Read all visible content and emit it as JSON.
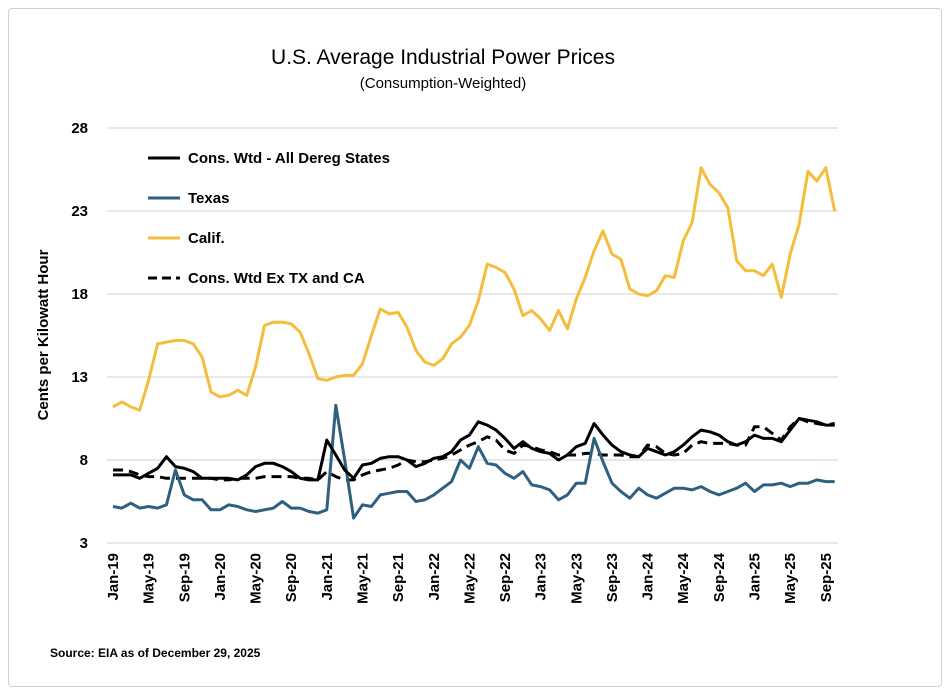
{
  "chart_data": {
    "type": "line",
    "title": "U.S. Average Industrial Power Prices",
    "subtitle": "(Consumption-Weighted)",
    "xlabel": "",
    "ylabel": "Cents per Kilowatt Hour",
    "ylim": [
      3,
      28
    ],
    "yticks": [
      3,
      8,
      13,
      18,
      23,
      28
    ],
    "x_start": "Jan-19",
    "x_end": "Oct-25",
    "xtick_labels": [
      "Jan-19",
      "May-19",
      "Sep-19",
      "Jan-20",
      "May-20",
      "Sep-20",
      "Jan-21",
      "May-21",
      "Sep-21",
      "Jan-22",
      "May-22",
      "Sep-22",
      "Jan-23",
      "May-23",
      "Sep-23",
      "Jan-24",
      "May-24",
      "Sep-24",
      "Jan-25",
      "May-25",
      "Sep-25"
    ],
    "grid": "horizontal",
    "legend_position": "top-left",
    "source": "Source: EIA as of December 29, 2025",
    "series": [
      {
        "name": "Cons. Wtd - All Dereg States",
        "color": "#000000",
        "dash": false,
        "values": [
          7.1,
          7.1,
          7.1,
          6.9,
          7.2,
          7.5,
          8.2,
          7.6,
          7.5,
          7.3,
          6.9,
          6.9,
          6.9,
          6.9,
          6.8,
          7.1,
          7.6,
          7.8,
          7.8,
          7.6,
          7.3,
          6.9,
          6.8,
          6.8,
          9.2,
          8.3,
          7.4,
          6.9,
          7.7,
          7.8,
          8.1,
          8.2,
          8.2,
          8.0,
          7.6,
          7.8,
          8.1,
          8.2,
          8.5,
          9.2,
          9.5,
          10.3,
          10.1,
          9.8,
          9.3,
          8.7,
          9.1,
          8.7,
          8.5,
          8.4,
          8.0,
          8.3,
          8.8,
          9.0,
          10.2,
          9.5,
          8.9,
          8.5,
          8.3,
          8.2,
          8.7,
          8.5,
          8.3,
          8.5,
          8.9,
          9.4,
          9.8,
          9.7,
          9.5,
          9.1,
          8.9,
          9.1,
          9.5,
          9.3,
          9.3,
          9.1,
          9.8,
          10.5,
          10.4,
          10.3,
          10.1,
          10.1
        ]
      },
      {
        "name": "Texas",
        "color": "#2F6080",
        "dash": false,
        "values": [
          5.2,
          5.1,
          5.4,
          5.1,
          5.2,
          5.1,
          5.3,
          7.4,
          5.9,
          5.6,
          5.6,
          5.0,
          5.0,
          5.3,
          5.2,
          5.0,
          4.9,
          5.0,
          5.1,
          5.5,
          5.1,
          5.1,
          4.9,
          4.8,
          5.0,
          11.3,
          8.0,
          4.5,
          5.3,
          5.2,
          5.9,
          6.0,
          6.1,
          6.1,
          5.5,
          5.6,
          5.9,
          6.3,
          6.7,
          8.0,
          7.5,
          8.8,
          7.8,
          7.7,
          7.2,
          6.9,
          7.3,
          6.5,
          6.4,
          6.2,
          5.6,
          5.9,
          6.6,
          6.6,
          9.3,
          7.9,
          6.6,
          6.1,
          5.7,
          6.3,
          5.9,
          5.7,
          6.0,
          6.3,
          6.3,
          6.2,
          6.4,
          6.1,
          5.9,
          6.1,
          6.3,
          6.6,
          6.1,
          6.5,
          6.5,
          6.6,
          6.4,
          6.6,
          6.6,
          6.8,
          6.7,
          6.7
        ]
      },
      {
        "name": "Calif.",
        "color": "#F4BE3C",
        "dash": false,
        "values": [
          11.2,
          11.5,
          11.2,
          11.0,
          12.8,
          15.0,
          15.1,
          15.2,
          15.2,
          15.0,
          14.2,
          12.1,
          11.8,
          11.9,
          12.2,
          11.9,
          13.6,
          16.1,
          16.3,
          16.3,
          16.2,
          15.7,
          14.4,
          12.9,
          12.8,
          13.0,
          13.1,
          13.1,
          13.8,
          15.5,
          17.1,
          16.8,
          16.9,
          16.0,
          14.6,
          13.9,
          13.7,
          14.1,
          15.0,
          15.4,
          16.1,
          17.6,
          19.8,
          19.6,
          19.3,
          18.3,
          16.7,
          17.0,
          16.5,
          15.8,
          17.0,
          15.9,
          17.7,
          19.0,
          20.6,
          21.8,
          20.4,
          20.1,
          18.3,
          18.0,
          17.9,
          18.2,
          19.1,
          19.0,
          21.2,
          22.3,
          25.6,
          24.6,
          24.1,
          23.2,
          20.0,
          19.4,
          19.4,
          19.1,
          19.8,
          17.8,
          20.4,
          22.2,
          25.4,
          24.8,
          25.6,
          23.0
        ]
      },
      {
        "name": "Cons. Wtd Ex TX and CA",
        "color": "#000000",
        "dash": true,
        "values": [
          7.4,
          7.4,
          7.3,
          7.1,
          7.0,
          7.0,
          6.9,
          6.9,
          6.9,
          6.9,
          6.9,
          6.9,
          6.8,
          6.8,
          6.9,
          6.9,
          6.9,
          7.0,
          7.0,
          7.0,
          7.0,
          6.9,
          6.9,
          6.8,
          7.3,
          7.0,
          6.8,
          6.8,
          7.1,
          7.3,
          7.4,
          7.5,
          7.7,
          8.0,
          7.9,
          7.9,
          8.0,
          8.1,
          8.3,
          8.6,
          8.9,
          9.1,
          9.4,
          9.2,
          8.6,
          8.4,
          8.9,
          8.8,
          8.6,
          8.5,
          8.3,
          8.3,
          8.3,
          8.4,
          8.4,
          8.3,
          8.3,
          8.3,
          8.2,
          8.2,
          8.9,
          8.8,
          8.4,
          8.3,
          8.4,
          8.9,
          9.1,
          9.0,
          9.0,
          9.0,
          8.9,
          8.9,
          10.0,
          10.0,
          9.6,
          9.2,
          10.0,
          10.5,
          10.3,
          10.2,
          10.1,
          10.2
        ]
      }
    ]
  }
}
